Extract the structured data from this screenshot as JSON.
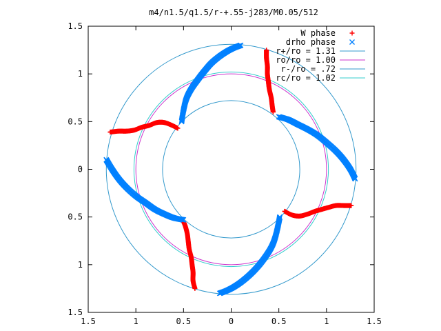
{
  "chart_data": {
    "type": "scatter",
    "title": "m4/n1.5/q1.5/r-+.55-j283/M0.05/512",
    "xlim": [
      -1.5,
      1.5
    ],
    "ylim": [
      -1.5,
      1.5
    ],
    "xticks": [
      {
        "value": -1.5,
        "label": "1.5"
      },
      {
        "value": -1.0,
        "label": "1"
      },
      {
        "value": -0.5,
        "label": "0.5"
      },
      {
        "value": 0,
        "label": "0"
      },
      {
        "value": 0.5,
        "label": "0.5"
      },
      {
        "value": 1.0,
        "label": "1"
      },
      {
        "value": 1.5,
        "label": "1.5"
      }
    ],
    "yticks": [
      {
        "value": 1.5,
        "label": "1.5"
      },
      {
        "value": 1.0,
        "label": "1"
      },
      {
        "value": 0.5,
        "label": "0.5"
      },
      {
        "value": 0,
        "label": "0"
      },
      {
        "value": -0.5,
        "label": "0.5"
      },
      {
        "value": -1.0,
        "label": "1"
      },
      {
        "value": -1.5,
        "label": "1.5"
      }
    ],
    "legend_position": "top-right",
    "grid": false,
    "circles": [
      {
        "name": "r+/ro = 1.31",
        "radius": 1.31,
        "color": "#3399cc"
      },
      {
        "name": "ro/ro = 1.00",
        "radius": 1.0,
        "color": "#cc33cc"
      },
      {
        "name": "r-/ro = .72",
        "radius": 0.72,
        "color": "#3399cc"
      },
      {
        "name": "rc/ro = 1.02",
        "radius": 1.02,
        "color": "#33cccc"
      }
    ],
    "series": [
      {
        "name": "W phase",
        "marker": "+",
        "color": "#ff0000",
        "arms": [
          [
            [
              0.37,
              1.25
            ],
            [
              0.37,
              1.17
            ],
            [
              0.38,
              1.08
            ],
            [
              0.38,
              1.0
            ],
            [
              0.39,
              0.92
            ],
            [
              0.4,
              0.84
            ],
            [
              0.42,
              0.75
            ],
            [
              0.43,
              0.67
            ],
            [
              0.44,
              0.6
            ]
          ],
          [
            [
              -1.27,
              0.39
            ],
            [
              -1.18,
              0.4
            ],
            [
              -1.1,
              0.4
            ],
            [
              -1.02,
              0.41
            ],
            [
              -0.94,
              0.44
            ],
            [
              -0.86,
              0.46
            ],
            [
              -0.78,
              0.49
            ],
            [
              -0.7,
              0.49
            ],
            [
              -0.62,
              0.46
            ],
            [
              -0.56,
              0.43
            ]
          ],
          [
            [
              -0.38,
              -1.25
            ],
            [
              -0.4,
              -1.17
            ],
            [
              -0.4,
              -1.08
            ],
            [
              -0.41,
              -1.0
            ],
            [
              -0.42,
              -0.92
            ],
            [
              -0.44,
              -0.84
            ],
            [
              -0.45,
              -0.76
            ],
            [
              -0.46,
              -0.68
            ],
            [
              -0.48,
              -0.6
            ],
            [
              -0.5,
              -0.55
            ]
          ],
          [
            [
              1.26,
              -0.38
            ],
            [
              1.18,
              -0.38
            ],
            [
              1.1,
              -0.38
            ],
            [
              1.02,
              -0.4
            ],
            [
              0.95,
              -0.42
            ],
            [
              0.88,
              -0.44
            ],
            [
              0.8,
              -0.47
            ],
            [
              0.72,
              -0.49
            ],
            [
              0.64,
              -0.48
            ],
            [
              0.56,
              -0.44
            ]
          ]
        ]
      },
      {
        "name": "drho phase",
        "marker": "x",
        "color": "#0080ff",
        "arms": [
          [
            [
              0.1,
              1.3
            ],
            [
              0.0,
              1.26
            ],
            [
              -0.1,
              1.2
            ],
            [
              -0.2,
              1.12
            ],
            [
              -0.28,
              1.03
            ],
            [
              -0.35,
              0.94
            ],
            [
              -0.42,
              0.84
            ],
            [
              -0.47,
              0.74
            ],
            [
              -0.5,
              0.62
            ],
            [
              -0.52,
              0.5
            ]
          ],
          [
            [
              -1.31,
              0.1
            ],
            [
              -1.25,
              0.0
            ],
            [
              -1.18,
              -0.1
            ],
            [
              -1.1,
              -0.19
            ],
            [
              -1.0,
              -0.28
            ],
            [
              -0.9,
              -0.35
            ],
            [
              -0.8,
              -0.42
            ],
            [
              -0.7,
              -0.47
            ],
            [
              -0.6,
              -0.51
            ],
            [
              -0.5,
              -0.53
            ]
          ],
          [
            [
              -0.12,
              -1.3
            ],
            [
              -0.02,
              -1.26
            ],
            [
              0.08,
              -1.2
            ],
            [
              0.18,
              -1.12
            ],
            [
              0.27,
              -1.03
            ],
            [
              0.35,
              -0.93
            ],
            [
              0.42,
              -0.82
            ],
            [
              0.46,
              -0.72
            ],
            [
              0.49,
              -0.6
            ],
            [
              0.51,
              -0.5
            ]
          ],
          [
            [
              1.3,
              -0.1
            ],
            [
              1.25,
              0.0
            ],
            [
              1.18,
              0.1
            ],
            [
              1.1,
              0.19
            ],
            [
              1.0,
              0.28
            ],
            [
              0.9,
              0.36
            ],
            [
              0.8,
              0.42
            ],
            [
              0.7,
              0.47
            ],
            [
              0.6,
              0.52
            ],
            [
              0.5,
              0.55
            ]
          ]
        ]
      }
    ]
  }
}
